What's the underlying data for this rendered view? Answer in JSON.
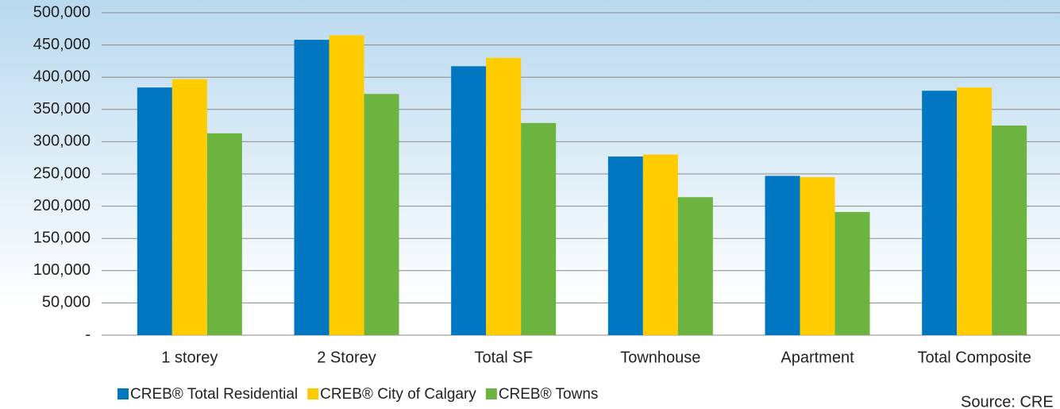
{
  "chart_data": {
    "type": "bar",
    "categories": [
      "1 storey",
      "2 Storey",
      "Total SF",
      "Townhouse",
      "Apartment",
      "Total Composite"
    ],
    "series": [
      {
        "name": "CREB® Total Residential",
        "color": "#0077c0",
        "values": [
          384000,
          458000,
          417000,
          277000,
          247000,
          379000
        ]
      },
      {
        "name": "CREB® City of Calgary",
        "color": "#ffcc00",
        "values": [
          397000,
          465000,
          430000,
          280000,
          245000,
          384000
        ]
      },
      {
        "name": "CREB® Towns",
        "color": "#6db33f",
        "values": [
          313000,
          374000,
          329000,
          214000,
          191000,
          325000
        ]
      }
    ],
    "ylim": [
      0,
      500000
    ],
    "yticks": [
      {
        "value": 0,
        "label": "-"
      },
      {
        "value": 50000,
        "label": "50,000"
      },
      {
        "value": 100000,
        "label": "100,000"
      },
      {
        "value": 150000,
        "label": "150,000"
      },
      {
        "value": 200000,
        "label": "200,000"
      },
      {
        "value": 250000,
        "label": "250,000"
      },
      {
        "value": 300000,
        "label": "300,000"
      },
      {
        "value": 350000,
        "label": "350,000"
      },
      {
        "value": 400000,
        "label": "400,000"
      },
      {
        "value": 450000,
        "label": "450,000"
      },
      {
        "value": 500000,
        "label": "500,000"
      }
    ],
    "grid": true,
    "legend": "bottom",
    "source": "Source: CRE"
  }
}
